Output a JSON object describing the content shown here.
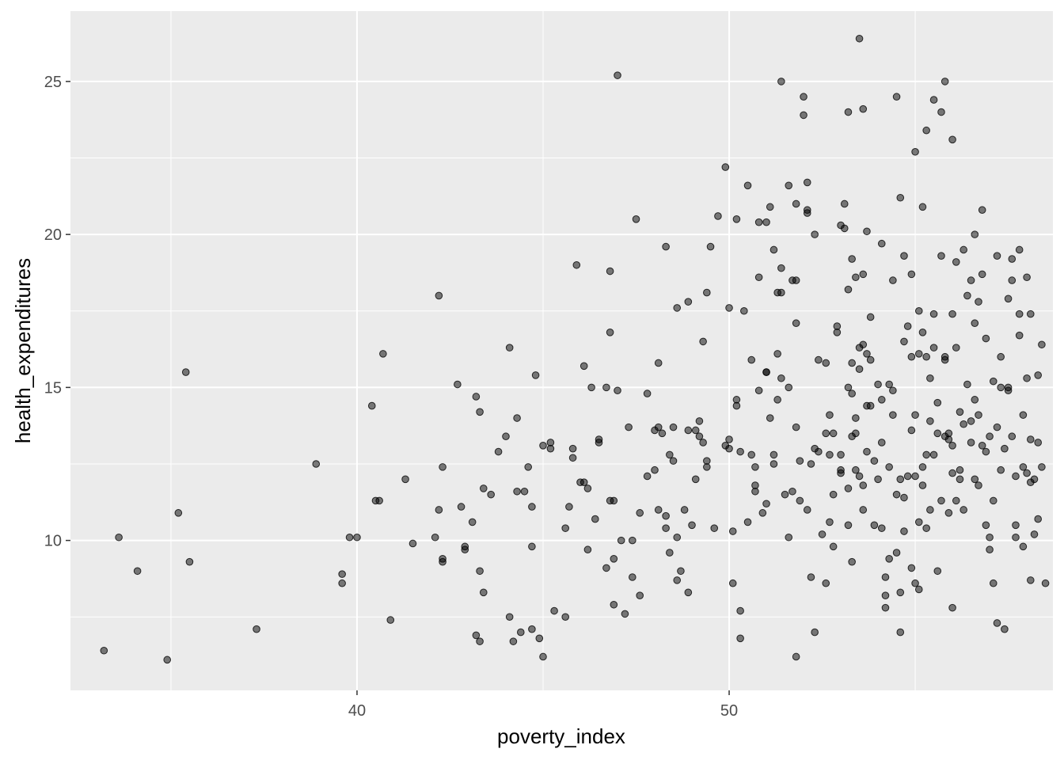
{
  "chart_data": {
    "type": "scatter",
    "title": "",
    "xlabel": "poverty_index",
    "ylabel": "health_expenditures",
    "xlim": [
      32.3,
      58.7
    ],
    "ylim": [
      5.1,
      27.3
    ],
    "x_ticks": [
      40,
      50
    ],
    "x_minor_ticks": [
      35,
      45,
      55
    ],
    "y_ticks": [
      10,
      15,
      20,
      25
    ],
    "y_minor_ticks": [
      7.5,
      12.5,
      17.5,
      22.5
    ],
    "x_tick_labels": [
      "40",
      "50"
    ],
    "y_tick_labels": [
      "10",
      "15",
      "20",
      "25"
    ],
    "grid": true,
    "panel_color": "#EBEBEB",
    "point_color": "#000000",
    "point_alpha": 0.5,
    "legend": "none",
    "points": [
      [
        33.2,
        6.4
      ],
      [
        33.6,
        10.1
      ],
      [
        34.1,
        9.0
      ],
      [
        34.9,
        6.1
      ],
      [
        35.2,
        10.9
      ],
      [
        35.4,
        15.5
      ],
      [
        35.5,
        9.3
      ],
      [
        37.3,
        7.1
      ],
      [
        38.9,
        12.5
      ],
      [
        39.6,
        8.9
      ],
      [
        39.6,
        8.6
      ],
      [
        39.8,
        10.1
      ],
      [
        40.0,
        10.1
      ],
      [
        40.4,
        14.4
      ],
      [
        40.5,
        11.3
      ],
      [
        40.6,
        11.3
      ],
      [
        40.7,
        16.1
      ],
      [
        40.9,
        7.4
      ],
      [
        41.3,
        12.0
      ],
      [
        41.5,
        9.9
      ],
      [
        42.1,
        10.1
      ],
      [
        42.2,
        11.0
      ],
      [
        42.2,
        18.0
      ],
      [
        42.3,
        9.4
      ],
      [
        42.3,
        9.3
      ],
      [
        42.3,
        12.4
      ],
      [
        42.7,
        15.1
      ],
      [
        42.8,
        11.1
      ],
      [
        42.9,
        9.8
      ],
      [
        42.9,
        9.7
      ],
      [
        43.1,
        10.6
      ],
      [
        43.2,
        6.9
      ],
      [
        43.2,
        14.7
      ],
      [
        43.3,
        14.2
      ],
      [
        43.3,
        9.0
      ],
      [
        43.3,
        6.7
      ],
      [
        43.4,
        11.7
      ],
      [
        43.4,
        8.3
      ],
      [
        43.6,
        11.5
      ],
      [
        43.8,
        12.9
      ],
      [
        44.0,
        13.4
      ],
      [
        44.1,
        16.3
      ],
      [
        44.1,
        7.5
      ],
      [
        44.2,
        6.7
      ],
      [
        44.3,
        14.0
      ],
      [
        44.3,
        11.6
      ],
      [
        44.4,
        7.0
      ],
      [
        44.5,
        11.6
      ],
      [
        44.6,
        12.4
      ],
      [
        44.7,
        9.8
      ],
      [
        44.7,
        7.1
      ],
      [
        44.7,
        11.1
      ],
      [
        44.8,
        15.4
      ],
      [
        44.9,
        6.8
      ],
      [
        45.0,
        6.2
      ],
      [
        45.0,
        13.1
      ],
      [
        45.2,
        13.2
      ],
      [
        45.2,
        13.0
      ],
      [
        45.3,
        7.7
      ],
      [
        45.6,
        10.4
      ],
      [
        45.6,
        7.5
      ],
      [
        45.7,
        11.1
      ],
      [
        45.8,
        13.0
      ],
      [
        45.8,
        12.7
      ],
      [
        45.9,
        19.0
      ],
      [
        46.0,
        11.9
      ],
      [
        46.1,
        15.7
      ],
      [
        46.1,
        11.9
      ],
      [
        46.2,
        11.7
      ],
      [
        46.2,
        9.7
      ],
      [
        46.3,
        15.0
      ],
      [
        46.4,
        10.7
      ],
      [
        46.5,
        13.2
      ],
      [
        46.5,
        13.3
      ],
      [
        46.7,
        9.1
      ],
      [
        46.7,
        15.0
      ],
      [
        46.8,
        11.3
      ],
      [
        46.8,
        16.8
      ],
      [
        46.8,
        18.8
      ],
      [
        46.9,
        11.3
      ],
      [
        46.9,
        9.4
      ],
      [
        46.9,
        7.9
      ],
      [
        47.0,
        25.2
      ],
      [
        47.0,
        14.9
      ],
      [
        47.1,
        10.0
      ],
      [
        47.2,
        7.6
      ],
      [
        47.3,
        13.7
      ],
      [
        47.4,
        10.0
      ],
      [
        47.4,
        8.8
      ],
      [
        47.5,
        20.5
      ],
      [
        47.6,
        10.9
      ],
      [
        47.6,
        8.2
      ],
      [
        47.8,
        12.1
      ],
      [
        47.8,
        14.8
      ],
      [
        48.0,
        13.6
      ],
      [
        48.0,
        12.3
      ],
      [
        48.1,
        11.0
      ],
      [
        48.1,
        15.8
      ],
      [
        48.1,
        13.7
      ],
      [
        48.2,
        13.5
      ],
      [
        48.3,
        10.8
      ],
      [
        48.3,
        10.4
      ],
      [
        48.3,
        19.6
      ],
      [
        48.4,
        9.6
      ],
      [
        48.4,
        12.8
      ],
      [
        48.5,
        13.7
      ],
      [
        48.5,
        12.6
      ],
      [
        48.6,
        17.6
      ],
      [
        48.6,
        8.7
      ],
      [
        48.6,
        10.1
      ],
      [
        48.7,
        9.0
      ],
      [
        48.8,
        11.0
      ],
      [
        48.9,
        8.3
      ],
      [
        48.9,
        13.6
      ],
      [
        48.9,
        17.8
      ],
      [
        49.0,
        10.5
      ],
      [
        49.1,
        12.0
      ],
      [
        49.1,
        13.6
      ],
      [
        49.2,
        13.9
      ],
      [
        49.2,
        13.4
      ],
      [
        49.3,
        16.5
      ],
      [
        49.3,
        13.2
      ],
      [
        49.4,
        12.6
      ],
      [
        49.4,
        12.4
      ],
      [
        49.4,
        18.1
      ],
      [
        49.5,
        19.6
      ],
      [
        49.6,
        10.4
      ],
      [
        49.7,
        20.6
      ],
      [
        49.9,
        13.1
      ],
      [
        49.9,
        22.2
      ],
      [
        50.0,
        13.3
      ],
      [
        50.0,
        17.6
      ],
      [
        50.0,
        13.0
      ],
      [
        50.1,
        8.6
      ],
      [
        50.1,
        10.3
      ],
      [
        50.2,
        14.4
      ],
      [
        50.2,
        14.6
      ],
      [
        50.2,
        20.5
      ],
      [
        50.3,
        7.7
      ],
      [
        50.3,
        6.8
      ],
      [
        50.3,
        12.9
      ],
      [
        50.4,
        17.5
      ],
      [
        50.5,
        10.6
      ],
      [
        50.6,
        15.9
      ],
      [
        50.6,
        12.8
      ],
      [
        50.7,
        12.4
      ],
      [
        50.7,
        11.6
      ],
      [
        50.7,
        11.8
      ],
      [
        50.8,
        14.9
      ],
      [
        50.8,
        20.4
      ],
      [
        50.9,
        10.9
      ],
      [
        51.0,
        20.4
      ],
      [
        51.0,
        15.5
      ],
      [
        51.0,
        11.2
      ],
      [
        51.0,
        15.5
      ],
      [
        51.1,
        14.0
      ],
      [
        51.2,
        12.5
      ],
      [
        51.2,
        12.8
      ],
      [
        51.2,
        19.5
      ],
      [
        51.3,
        16.1
      ],
      [
        51.3,
        14.6
      ],
      [
        51.3,
        18.1
      ],
      [
        51.4,
        15.3
      ],
      [
        51.4,
        25.0
      ],
      [
        51.4,
        18.1
      ],
      [
        51.5,
        11.5
      ],
      [
        51.6,
        21.6
      ],
      [
        51.6,
        15.0
      ],
      [
        51.6,
        10.1
      ],
      [
        51.7,
        11.6
      ],
      [
        51.7,
        18.5
      ],
      [
        51.8,
        18.5
      ],
      [
        51.8,
        17.1
      ],
      [
        51.8,
        13.7
      ],
      [
        51.8,
        6.2
      ],
      [
        51.9,
        11.3
      ],
      [
        51.9,
        12.6
      ],
      [
        52.0,
        23.9
      ],
      [
        52.1,
        20.8
      ],
      [
        52.1,
        11.0
      ],
      [
        52.2,
        12.5
      ],
      [
        52.2,
        8.8
      ],
      [
        52.3,
        7.0
      ],
      [
        52.3,
        13.0
      ],
      [
        52.3,
        20.0
      ],
      [
        52.4,
        15.9
      ],
      [
        52.4,
        12.9
      ],
      [
        52.5,
        10.2
      ],
      [
        52.6,
        8.6
      ],
      [
        52.6,
        13.5
      ],
      [
        52.6,
        15.8
      ],
      [
        52.7,
        10.6
      ],
      [
        52.7,
        12.8
      ],
      [
        52.7,
        14.1
      ],
      [
        52.8,
        13.5
      ],
      [
        52.8,
        11.5
      ],
      [
        52.8,
        9.8
      ],
      [
        52.9,
        16.8
      ],
      [
        52.9,
        17.0
      ],
      [
        53.0,
        12.2
      ],
      [
        53.0,
        12.8
      ],
      [
        53.0,
        12.3
      ],
      [
        53.1,
        21.0
      ],
      [
        53.2,
        18.2
      ],
      [
        53.2,
        11.7
      ],
      [
        53.2,
        15.0
      ],
      [
        53.2,
        10.5
      ],
      [
        53.3,
        14.8
      ],
      [
        53.3,
        15.8
      ],
      [
        53.3,
        13.4
      ],
      [
        53.3,
        9.3
      ],
      [
        53.4,
        13.5
      ],
      [
        53.4,
        12.3
      ],
      [
        53.4,
        14.0
      ],
      [
        53.5,
        16.3
      ],
      [
        53.5,
        15.6
      ],
      [
        53.5,
        12.1
      ],
      [
        53.6,
        11.0
      ],
      [
        53.6,
        16.4
      ],
      [
        53.6,
        11.8
      ],
      [
        53.7,
        12.9
      ],
      [
        53.7,
        14.4
      ],
      [
        53.7,
        16.1
      ],
      [
        53.8,
        15.9
      ],
      [
        53.8,
        14.4
      ],
      [
        53.8,
        17.3
      ],
      [
        53.9,
        12.6
      ],
      [
        53.9,
        10.5
      ],
      [
        54.0,
        12.0
      ],
      [
        54.0,
        15.1
      ],
      [
        54.1,
        14.6
      ],
      [
        54.1,
        13.2
      ],
      [
        54.1,
        10.4
      ],
      [
        54.2,
        7.8
      ],
      [
        54.2,
        8.2
      ],
      [
        54.2,
        8.8
      ],
      [
        54.3,
        15.1
      ],
      [
        54.3,
        12.4
      ],
      [
        54.3,
        9.4
      ],
      [
        54.4,
        14.9
      ],
      [
        54.4,
        14.1
      ],
      [
        54.4,
        18.5
      ],
      [
        54.5,
        11.5
      ],
      [
        54.5,
        9.6
      ],
      [
        54.5,
        24.5
      ],
      [
        54.6,
        7.0
      ],
      [
        54.6,
        8.3
      ],
      [
        54.6,
        12.0
      ],
      [
        54.7,
        10.3
      ],
      [
        54.7,
        16.5
      ],
      [
        54.7,
        11.4
      ],
      [
        54.8,
        12.1
      ],
      [
        54.8,
        17.0
      ],
      [
        54.9,
        16.0
      ],
      [
        54.9,
        9.1
      ],
      [
        54.9,
        13.6
      ],
      [
        55.0,
        8.6
      ],
      [
        55.0,
        14.1
      ],
      [
        55.0,
        12.1
      ],
      [
        55.1,
        16.1
      ],
      [
        55.1,
        8.4
      ],
      [
        55.1,
        10.6
      ],
      [
        55.1,
        17.5
      ],
      [
        55.2,
        11.8
      ],
      [
        55.2,
        12.4
      ],
      [
        55.2,
        16.8
      ],
      [
        55.3,
        16.0
      ],
      [
        55.3,
        10.4
      ],
      [
        55.3,
        12.8
      ],
      [
        55.4,
        11.0
      ],
      [
        55.4,
        13.9
      ],
      [
        55.4,
        15.3
      ],
      [
        55.5,
        12.8
      ],
      [
        55.5,
        24.4
      ],
      [
        55.5,
        16.3
      ],
      [
        55.5,
        17.4
      ],
      [
        55.6,
        14.5
      ],
      [
        55.6,
        13.5
      ],
      [
        55.6,
        9.0
      ],
      [
        55.7,
        24.0
      ],
      [
        55.7,
        11.3
      ],
      [
        55.8,
        16.0
      ],
      [
        55.8,
        15.9
      ],
      [
        55.8,
        13.4
      ],
      [
        55.9,
        10.9
      ],
      [
        55.9,
        13.3
      ],
      [
        55.9,
        13.5
      ],
      [
        56.0,
        17.4
      ],
      [
        56.0,
        7.8
      ],
      [
        56.0,
        12.2
      ],
      [
        56.0,
        13.1
      ],
      [
        56.1,
        16.3
      ],
      [
        56.1,
        11.3
      ],
      [
        56.2,
        14.2
      ],
      [
        56.2,
        12.0
      ],
      [
        56.2,
        12.3
      ],
      [
        56.3,
        13.8
      ],
      [
        56.3,
        11.0
      ],
      [
        56.3,
        19.5
      ],
      [
        56.4,
        15.1
      ],
      [
        56.4,
        18.0
      ],
      [
        56.5,
        13.9
      ],
      [
        56.5,
        18.5
      ],
      [
        56.5,
        13.2
      ],
      [
        56.6,
        12.0
      ],
      [
        56.6,
        17.1
      ],
      [
        56.6,
        14.6
      ],
      [
        56.7,
        11.8
      ],
      [
        56.7,
        17.8
      ],
      [
        56.7,
        14.1
      ],
      [
        56.8,
        13.1
      ],
      [
        56.8,
        18.7
      ],
      [
        56.9,
        16.6
      ],
      [
        56.9,
        12.9
      ],
      [
        56.9,
        10.5
      ],
      [
        57.0,
        13.4
      ],
      [
        57.0,
        9.7
      ],
      [
        57.0,
        10.1
      ],
      [
        57.1,
        15.2
      ],
      [
        57.1,
        11.3
      ],
      [
        57.1,
        8.6
      ],
      [
        57.2,
        19.3
      ],
      [
        57.2,
        13.7
      ],
      [
        57.2,
        7.3
      ],
      [
        57.3,
        15.0
      ],
      [
        57.3,
        16.0
      ],
      [
        57.3,
        12.3
      ],
      [
        57.4,
        13.0
      ],
      [
        57.4,
        7.1
      ],
      [
        57.5,
        14.9
      ],
      [
        57.5,
        17.9
      ],
      [
        57.5,
        15.0
      ],
      [
        57.6,
        18.5
      ],
      [
        57.6,
        19.2
      ],
      [
        57.6,
        13.4
      ],
      [
        57.7,
        12.1
      ],
      [
        57.7,
        10.5
      ],
      [
        57.7,
        10.1
      ],
      [
        57.8,
        16.7
      ],
      [
        57.8,
        19.5
      ],
      [
        57.8,
        17.4
      ],
      [
        57.9,
        12.4
      ],
      [
        57.9,
        14.1
      ],
      [
        57.9,
        9.8
      ],
      [
        58.0,
        15.3
      ],
      [
        58.0,
        18.6
      ],
      [
        58.0,
        12.2
      ],
      [
        58.1,
        17.4
      ],
      [
        58.1,
        8.7
      ],
      [
        58.1,
        11.9
      ],
      [
        58.1,
        13.3
      ],
      [
        58.2,
        10.2
      ],
      [
        58.2,
        12.0
      ],
      [
        58.3,
        10.7
      ],
      [
        58.3,
        15.4
      ],
      [
        58.3,
        13.2
      ],
      [
        58.4,
        16.4
      ],
      [
        58.4,
        12.4
      ],
      [
        58.5,
        8.6
      ],
      [
        53.5,
        26.4
      ],
      [
        55.8,
        25.0
      ],
      [
        52.0,
        24.5
      ],
      [
        53.2,
        24.0
      ],
      [
        53.6,
        24.1
      ],
      [
        55.3,
        23.4
      ],
      [
        56.0,
        23.1
      ],
      [
        55.0,
        22.7
      ],
      [
        54.6,
        21.2
      ],
      [
        52.1,
        21.7
      ],
      [
        50.5,
        21.6
      ],
      [
        51.1,
        20.9
      ],
      [
        51.8,
        21.0
      ],
      [
        52.1,
        20.7
      ],
      [
        53.0,
        20.3
      ],
      [
        53.1,
        20.2
      ],
      [
        53.7,
        20.1
      ],
      [
        54.7,
        19.3
      ],
      [
        55.2,
        20.9
      ],
      [
        56.1,
        19.1
      ],
      [
        56.8,
        20.8
      ],
      [
        56.6,
        20.0
      ],
      [
        55.7,
        19.3
      ],
      [
        54.9,
        18.7
      ],
      [
        53.3,
        19.2
      ],
      [
        53.4,
        18.6
      ],
      [
        53.6,
        18.7
      ],
      [
        54.1,
        19.7
      ],
      [
        51.4,
        18.9
      ],
      [
        50.8,
        18.6
      ]
    ]
  },
  "x_tick_values": {
    "a": "40",
    "b": "50"
  }
}
